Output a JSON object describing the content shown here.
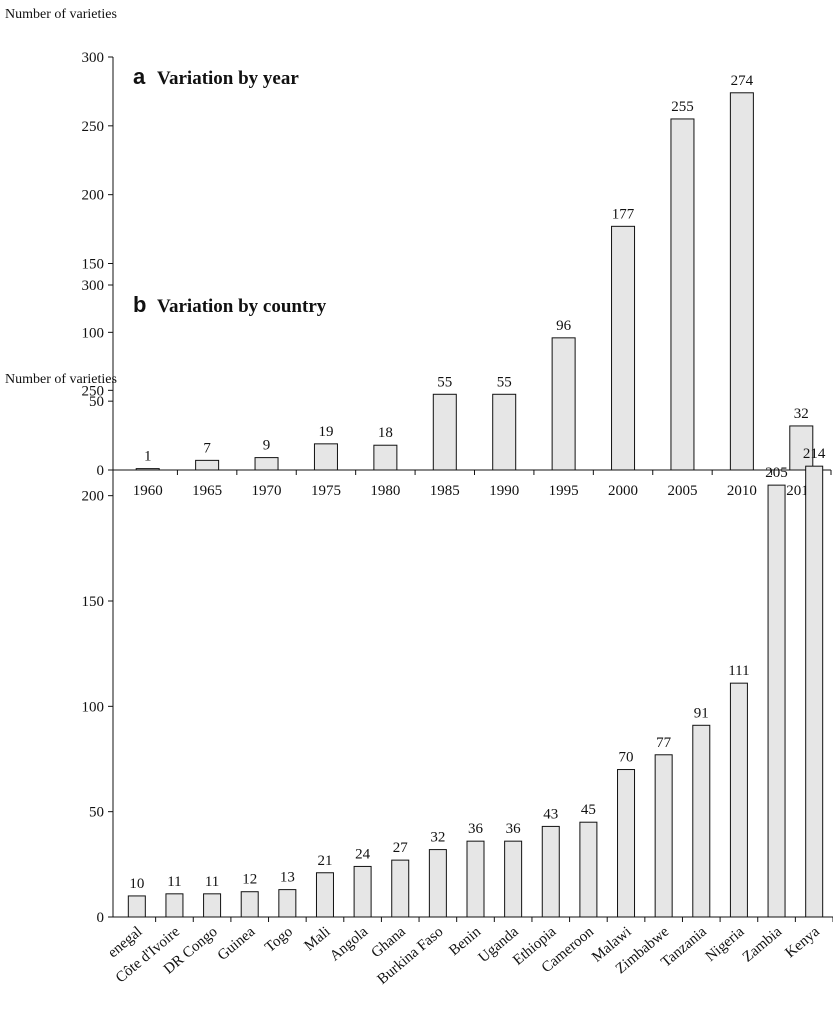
{
  "chart_data": [
    {
      "type": "bar",
      "y_label": "Number of varieties",
      "panel": "a",
      "title": "Variation by year",
      "categories": [
        "1960",
        "1965",
        "1970",
        "1975",
        "1980",
        "1985",
        "1990",
        "1995",
        "2000",
        "2005",
        "2010",
        "2015"
      ],
      "values": [
        1,
        7,
        9,
        19,
        18,
        55,
        55,
        96,
        177,
        255,
        274,
        32
      ],
      "color": "#e6e6e6",
      "ylim": [
        0,
        300
      ],
      "yticks": [
        0,
        50,
        100,
        150,
        200,
        250,
        300
      ]
    },
    {
      "type": "bar",
      "y_label": "Number of varieties",
      "panel": "b",
      "title": "Variation by country",
      "categories": [
        "enegal",
        "Côte d'Ivoire",
        "DR Congo",
        "Guinea",
        "Togo",
        "Mali",
        "Angola",
        "Ghana",
        "Burkina Faso",
        "Benin",
        "Uganda",
        "Ethiopia",
        "Cameroon",
        "Malawi",
        "Zimbabwe",
        "Tanzania",
        "Nigeria",
        "Zambia",
        "Kenya"
      ],
      "values": [
        10,
        11,
        11,
        12,
        13,
        21,
        24,
        27,
        32,
        36,
        36,
        43,
        45,
        70,
        77,
        91,
        111,
        205,
        214
      ],
      "color": "#e6e6e6",
      "ylim": [
        0,
        300
      ],
      "yticks": [
        0,
        50,
        100,
        150,
        200,
        250,
        300
      ]
    }
  ]
}
